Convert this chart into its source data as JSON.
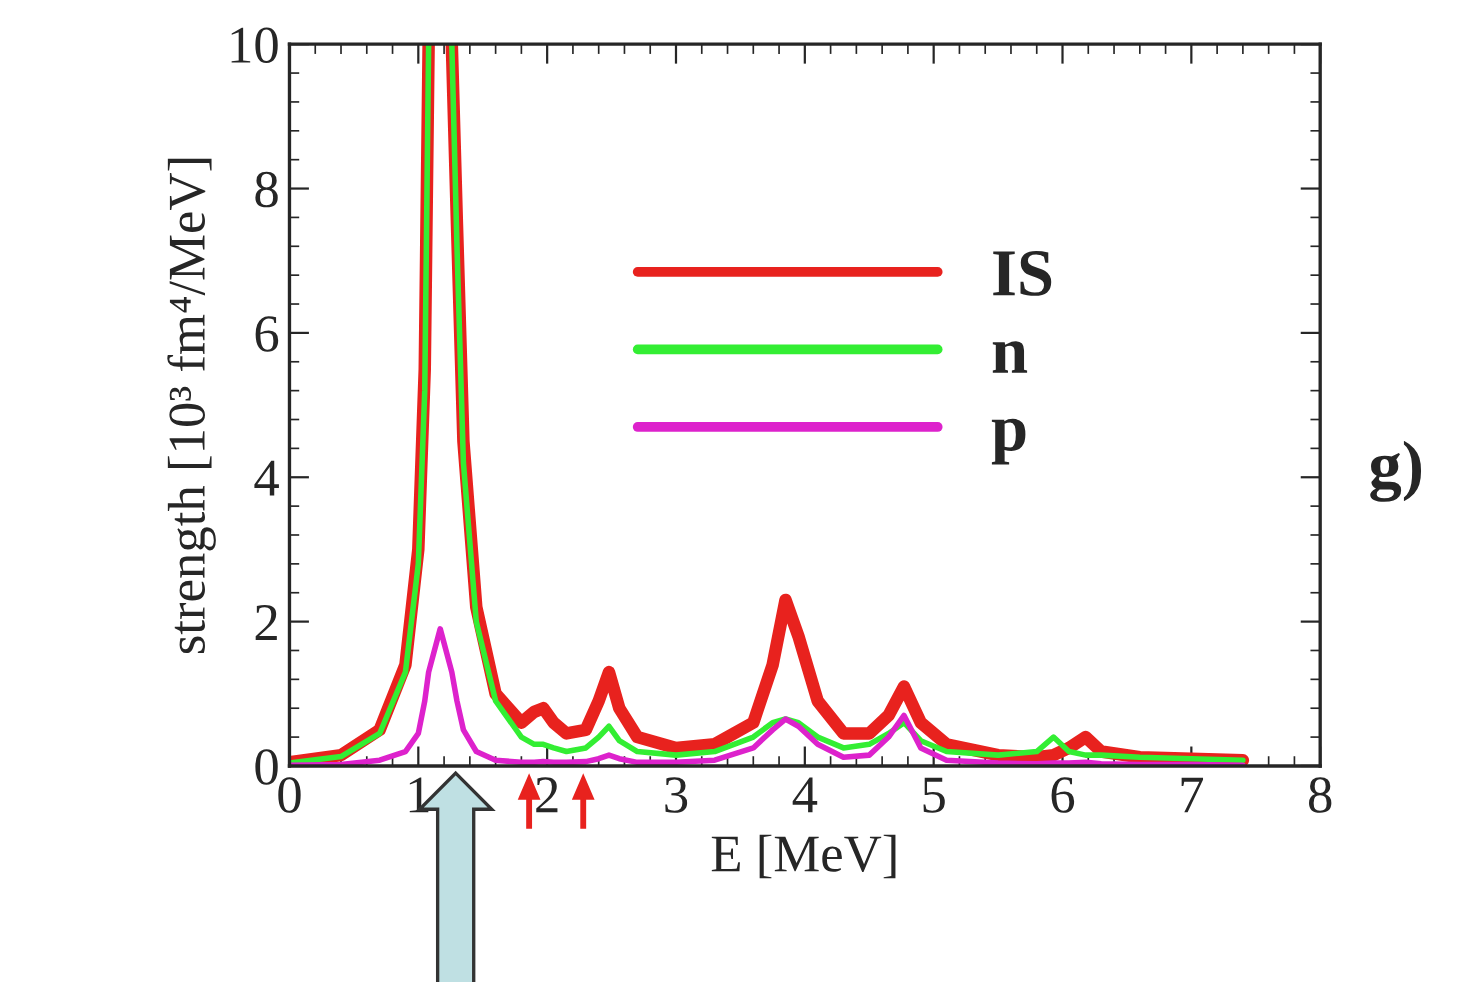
{
  "chart_data": {
    "type": "line",
    "xlabel": "E [MeV]",
    "ylabel": "strength [10³ fm⁴/MeV]",
    "x": [
      0,
      0.4,
      0.7,
      0.9,
      1.0,
      1.05,
      1.08,
      1.17,
      1.26,
      1.3,
      1.35,
      1.45,
      1.6,
      1.8,
      1.9,
      1.97,
      2.05,
      2.15,
      2.3,
      2.4,
      2.48,
      2.56,
      2.7,
      3.0,
      3.3,
      3.6,
      3.75,
      3.85,
      3.95,
      4.1,
      4.3,
      4.5,
      4.65,
      4.77,
      4.9,
      5.1,
      5.5,
      5.8,
      5.93,
      6.05,
      6.18,
      6.3,
      6.6,
      7.0,
      7.4
    ],
    "series": [
      {
        "name": "IS",
        "color": "#e8221e",
        "values": [
          0.05,
          0.15,
          0.5,
          1.4,
          3.0,
          5.5,
          10,
          null,
          10,
          7.5,
          4.5,
          2.2,
          1.0,
          0.6,
          0.75,
          0.8,
          0.6,
          0.45,
          0.5,
          0.9,
          1.3,
          0.8,
          0.4,
          0.25,
          0.3,
          0.6,
          1.4,
          2.3,
          1.8,
          0.9,
          0.45,
          0.45,
          0.7,
          1.1,
          0.6,
          0.3,
          0.15,
          0.12,
          0.15,
          0.25,
          0.4,
          0.2,
          0.12,
          0.1,
          0.08
        ]
      },
      {
        "name": "n",
        "color": "#33ee33",
        "values": [
          0.04,
          0.13,
          0.45,
          1.3,
          2.8,
          5.2,
          10,
          null,
          10,
          7.2,
          4.2,
          2.0,
          0.9,
          0.4,
          0.3,
          0.3,
          0.25,
          0.2,
          0.25,
          0.4,
          0.55,
          0.35,
          0.2,
          0.15,
          0.2,
          0.4,
          0.6,
          0.65,
          0.6,
          0.4,
          0.25,
          0.3,
          0.45,
          0.6,
          0.35,
          0.2,
          0.15,
          0.2,
          0.4,
          0.2,
          0.15,
          0.15,
          0.12,
          0.1,
          0.08
        ]
      },
      {
        "name": "p",
        "color": "#dd22cc",
        "values": [
          0.01,
          0.02,
          0.08,
          0.2,
          0.45,
          0.9,
          1.3,
          1.9,
          1.3,
          0.9,
          0.5,
          0.2,
          0.08,
          0.05,
          0.05,
          0.06,
          0.05,
          0.05,
          0.06,
          0.1,
          0.15,
          0.1,
          0.05,
          0.05,
          0.08,
          0.25,
          0.5,
          0.65,
          0.55,
          0.3,
          0.12,
          0.15,
          0.4,
          0.7,
          0.25,
          0.08,
          0.04,
          0.03,
          0.04,
          0.04,
          0.05,
          0.03,
          0.02,
          0.02,
          0.01
        ]
      }
    ],
    "xlim": [
      0,
      8
    ],
    "xticks": [
      0,
      1,
      2,
      3,
      4,
      5,
      6,
      7,
      8
    ],
    "ylim": [
      0,
      10
    ],
    "yticks": [
      0,
      2,
      4,
      6,
      8,
      10
    ],
    "grid": false,
    "legend": "top right",
    "marker": "none",
    "line_style": "solid",
    "annotations": [
      "g)"
    ]
  }
}
